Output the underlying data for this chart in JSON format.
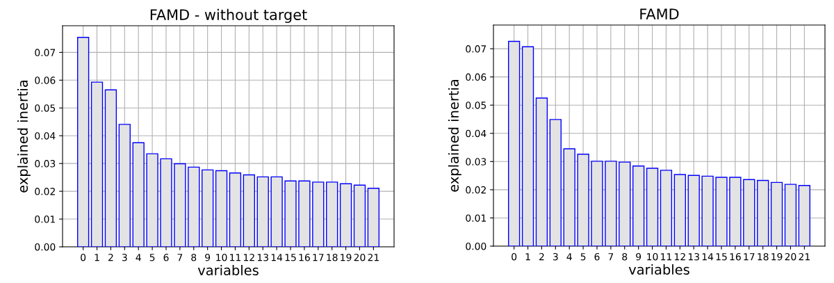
{
  "chart_data": [
    {
      "type": "bar",
      "title": "FAMD - without target",
      "xlabel": "variables",
      "ylabel": "explained inertia",
      "color": "#e3e3e3",
      "grid": true,
      "categories": [
        "0",
        "1",
        "2",
        "3",
        "4",
        "5",
        "6",
        "7",
        "8",
        "9",
        "10",
        "11",
        "12",
        "13",
        "14",
        "15",
        "16",
        "17",
        "18",
        "19",
        "20",
        "21"
      ],
      "values": [
        0.0754,
        0.0593,
        0.0565,
        0.0441,
        0.0375,
        0.0335,
        0.0317,
        0.0299,
        0.0287,
        0.0277,
        0.0274,
        0.0266,
        0.0259,
        0.0252,
        0.0252,
        0.0237,
        0.0237,
        0.0233,
        0.0233,
        0.0227,
        0.0222,
        0.0211
      ],
      "ylim": [
        0,
        0.0796
      ],
      "yticks": [
        {
          "value": 0,
          "label": "0.00"
        },
        {
          "value": 0.01,
          "label": "0.01"
        },
        {
          "value": 0.02,
          "label": "0.02"
        },
        {
          "value": 0.03,
          "label": "0.03"
        },
        {
          "value": 0.04,
          "label": "0.04"
        },
        {
          "value": 0.05,
          "label": "0.05"
        },
        {
          "value": 0.06,
          "label": "0.06"
        },
        {
          "value": 0.07,
          "label": "0.07"
        }
      ]
    },
    {
      "type": "bar",
      "title": "FAMD",
      "xlabel": "variables",
      "ylabel": "explained inertia",
      "color": "#e3e3e3",
      "grid": true,
      "categories": [
        "0",
        "1",
        "2",
        "3",
        "4",
        "5",
        "6",
        "7",
        "8",
        "9",
        "10",
        "11",
        "12",
        "13",
        "14",
        "15",
        "16",
        "17",
        "18",
        "19",
        "20",
        "21"
      ],
      "values": [
        0.0726,
        0.0707,
        0.0525,
        0.0449,
        0.0345,
        0.0326,
        0.0301,
        0.0301,
        0.0298,
        0.0284,
        0.0276,
        0.0269,
        0.0254,
        0.0251,
        0.0248,
        0.0244,
        0.0244,
        0.0236,
        0.0233,
        0.0226,
        0.0219,
        0.0215
      ],
      "ylim": [
        0,
        0.0784
      ],
      "yticks": [
        {
          "value": 0,
          "label": "0.00"
        },
        {
          "value": 0.01,
          "label": "0.01"
        },
        {
          "value": 0.02,
          "label": "0.02"
        },
        {
          "value": 0.03,
          "label": "0.03"
        },
        {
          "value": 0.04,
          "label": "0.04"
        },
        {
          "value": 0.05,
          "label": "0.05"
        },
        {
          "value": 0.06,
          "label": "0.06"
        },
        {
          "value": 0.07,
          "label": "0.07"
        }
      ]
    }
  ]
}
